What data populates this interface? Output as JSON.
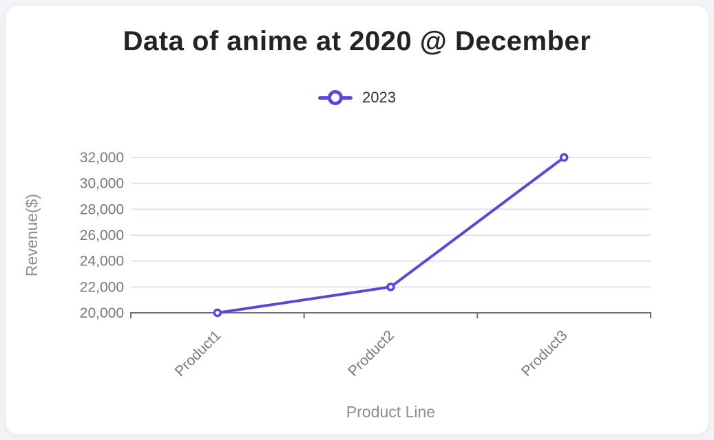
{
  "page": {
    "background": "#f3f4f8",
    "card_background": "#ffffff"
  },
  "chart_data": {
    "type": "line",
    "title": "Data of anime at 2020 @ December",
    "categories": [
      "Product1",
      "Product2",
      "Product3"
    ],
    "series": [
      {
        "name": "2023",
        "values": [
          20000,
          22000,
          32000
        ]
      }
    ],
    "xlabel": "Product Line",
    "ylabel": "Revenue($)",
    "ylim": [
      20000,
      32000
    ],
    "yticks": [
      20000,
      22000,
      24000,
      26000,
      28000,
      30000,
      32000
    ],
    "ytick_labels": [
      "20,000",
      "22,000",
      "24,000",
      "26,000",
      "28,000",
      "30,000",
      "32,000"
    ],
    "grid": true,
    "legend_position": "top-center",
    "x_label_rotation_deg": 45,
    "marker_style": "hollow-circle",
    "colors": {
      "series": "#5A46D7",
      "grid_line": "#E0E4F0",
      "axis_line": "#6E7079",
      "tick_label": "#75787F",
      "axis_name": "#8A8D93",
      "title": "#242229",
      "legend_text": "#333333"
    }
  }
}
